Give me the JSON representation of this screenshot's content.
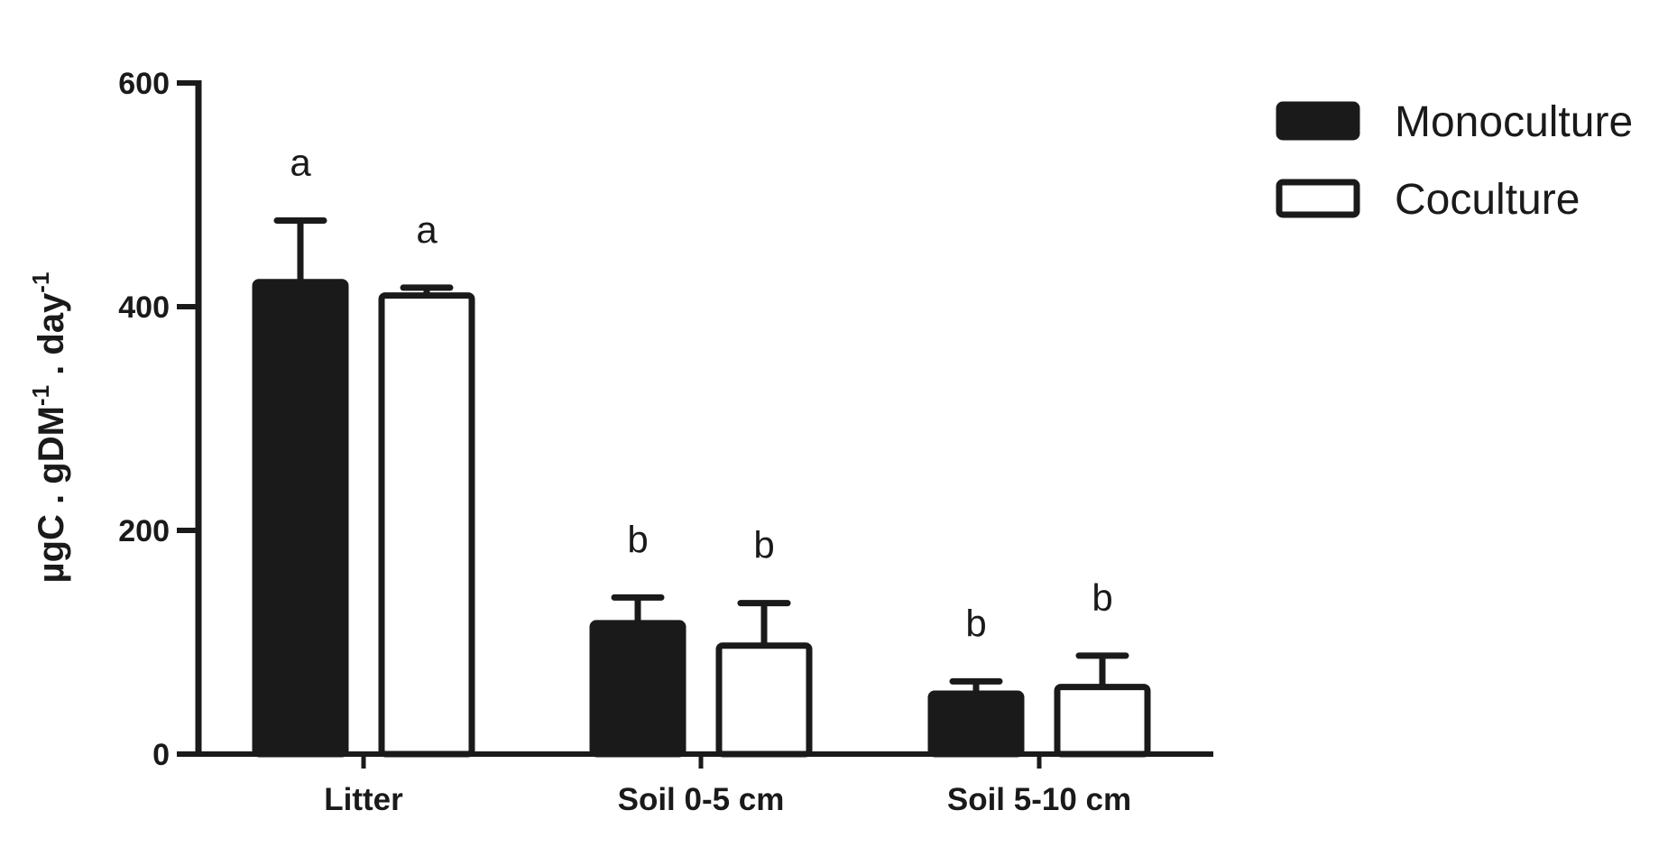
{
  "chart_data": {
    "type": "bar",
    "categories": [
      "Litter",
      "Soil 0-5 cm",
      "Soil 5-10 cm"
    ],
    "series": [
      {
        "name": "Monoculture",
        "values": [
          422,
          117,
          54
        ],
        "errors": [
          55,
          23,
          11
        ],
        "significance": [
          "a",
          "b",
          "b"
        ],
        "fill": "#1a1a1a"
      },
      {
        "name": "Coculture",
        "values": [
          410,
          97,
          60
        ],
        "errors": [
          7,
          38,
          28
        ],
        "significance": [
          "a",
          "b",
          "b"
        ],
        "fill": "#ffffff"
      }
    ],
    "title": "",
    "xlabel": "",
    "ylabel": {
      "parts": [
        {
          "text": "µgC . gDM",
          "sup": false
        },
        {
          "text": "-1",
          "sup": true
        },
        {
          "text": " . day",
          "sup": false
        },
        {
          "text": "-1",
          "sup": true
        }
      ]
    },
    "ylim": [
      0,
      600
    ],
    "yticks": [
      0,
      200,
      400,
      600
    ],
    "ytick_labels": [
      "0",
      "200",
      "400",
      "600"
    ],
    "grid": false,
    "legend_position": "top-right",
    "colors": {
      "stroke": "#1a1a1a",
      "background": "#ffffff"
    }
  }
}
